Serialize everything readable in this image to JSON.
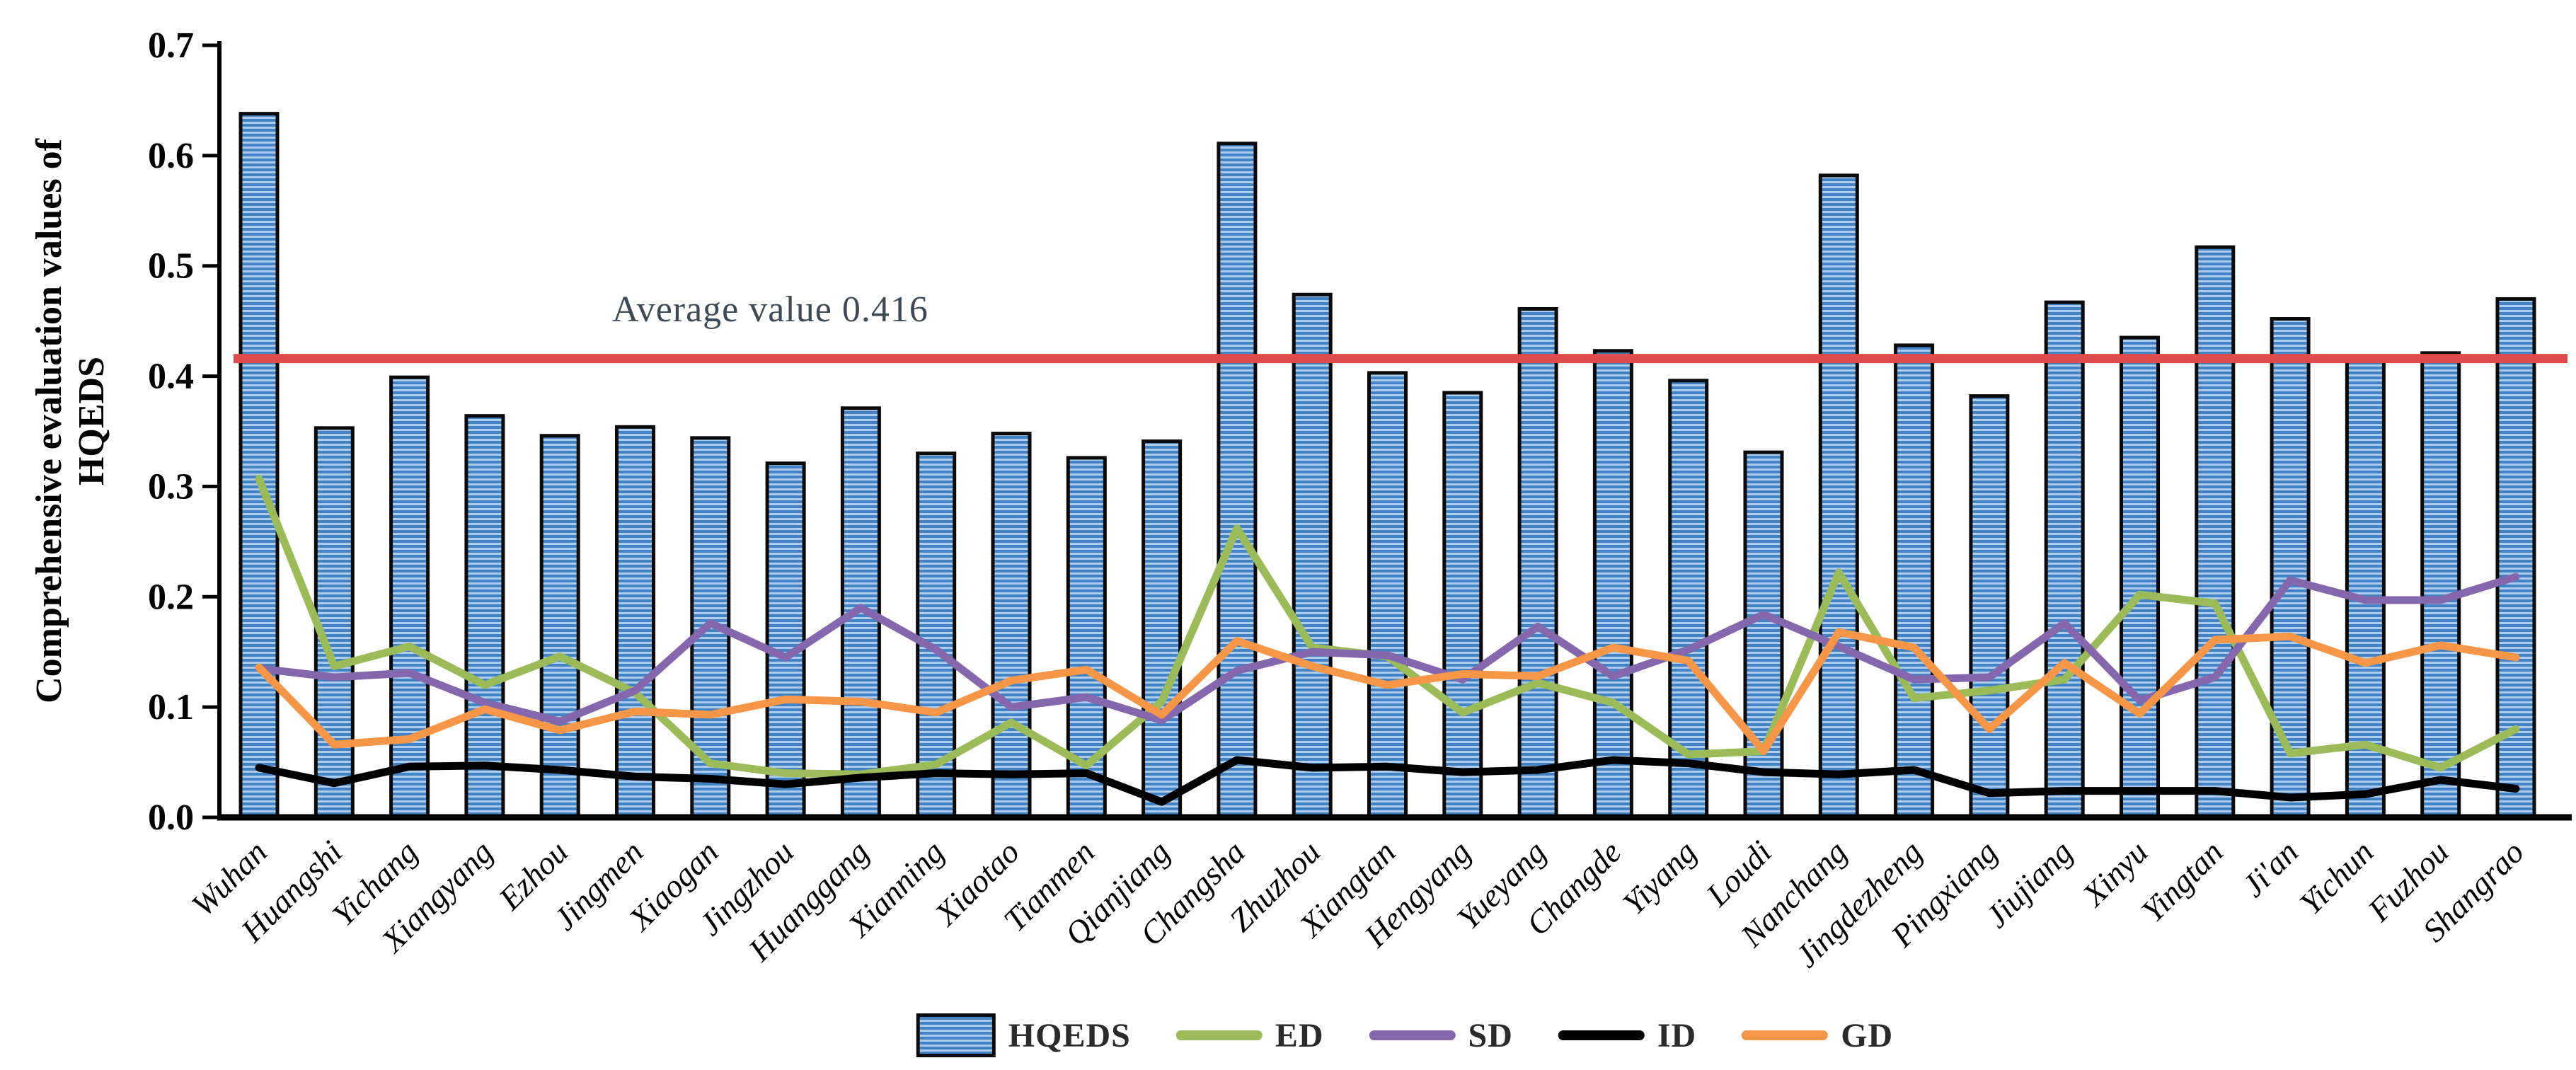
{
  "figure": {
    "ylabel_line1": "Comprehensive evaluation values of",
    "ylabel_line2": "HQEDS",
    "average_label": "Average value 0.416"
  },
  "chart_data": {
    "type": "bar+line composite",
    "title": "",
    "xlabel": "",
    "ylabel": "Comprehensive evaluation values of HQEDS",
    "ylim": [
      0.0,
      0.7
    ],
    "ytick_step": 0.1,
    "ytick_labels": [
      "0.0",
      "0.1",
      "0.2",
      "0.3",
      "0.4",
      "0.5",
      "0.6",
      "0.7"
    ],
    "grid": false,
    "legend_position": "bottom-center",
    "average_line": {
      "value": 0.416,
      "label": "Average value 0.416",
      "color": "#e14b4b"
    },
    "categories": [
      "Wuhan",
      "Huangshi",
      "Yichang",
      "Xiangyang",
      "Ezhou",
      "Jingmen",
      "Xiaogan",
      "Jingzhou",
      "Huanggang",
      "Xianning",
      "Xiaotao",
      "Tianmen",
      "Qianjiang",
      "Changsha",
      "Zhuzhou",
      "Xiangtan",
      "Hengyang",
      "Yueyang",
      "Changde",
      "Yiyang",
      "Loudi",
      "Nanchang",
      "Jingdezheng",
      "Pingxiang",
      "Jiujiang",
      "Xinyu",
      "Yingtan",
      "Ji'an",
      "Yichun",
      "Fuzhou",
      "Shangrao"
    ],
    "bar_series": {
      "name": "HQEDS",
      "color_dark": "#4183c4",
      "color_light": "#aecdec",
      "border_color": "#0a0a0a",
      "values": [
        0.638,
        0.353,
        0.399,
        0.364,
        0.346,
        0.354,
        0.344,
        0.321,
        0.371,
        0.33,
        0.348,
        0.326,
        0.341,
        0.611,
        0.474,
        0.403,
        0.385,
        0.461,
        0.423,
        0.396,
        0.331,
        0.582,
        0.428,
        0.382,
        0.467,
        0.435,
        0.517,
        0.452,
        0.418,
        0.421,
        0.47
      ]
    },
    "series": [
      {
        "name": "ED",
        "color": "#9bbb59",
        "values": [
          0.307,
          0.137,
          0.155,
          0.12,
          0.146,
          0.113,
          0.049,
          0.04,
          0.039,
          0.048,
          0.086,
          0.047,
          0.105,
          0.262,
          0.154,
          0.146,
          0.095,
          0.122,
          0.104,
          0.057,
          0.06,
          0.222,
          0.108,
          0.115,
          0.125,
          0.202,
          0.194,
          0.058,
          0.066,
          0.045,
          0.08
        ]
      },
      {
        "name": "SD",
        "color": "#8467ad",
        "values": [
          0.135,
          0.127,
          0.131,
          0.104,
          0.087,
          0.115,
          0.176,
          0.145,
          0.19,
          0.152,
          0.1,
          0.109,
          0.088,
          0.133,
          0.15,
          0.147,
          0.125,
          0.173,
          0.128,
          0.152,
          0.184,
          0.155,
          0.125,
          0.127,
          0.176,
          0.106,
          0.127,
          0.215,
          0.197,
          0.197,
          0.218
        ]
      },
      {
        "name": "ID",
        "color": "#000000",
        "values": [
          0.045,
          0.031,
          0.046,
          0.047,
          0.043,
          0.037,
          0.035,
          0.03,
          0.036,
          0.04,
          0.039,
          0.04,
          0.014,
          0.052,
          0.045,
          0.046,
          0.041,
          0.043,
          0.052,
          0.049,
          0.041,
          0.039,
          0.043,
          0.022,
          0.024,
          0.024,
          0.024,
          0.018,
          0.021,
          0.034,
          0.026
        ]
      },
      {
        "name": "GD",
        "color": "#f79646",
        "values": [
          0.136,
          0.066,
          0.071,
          0.098,
          0.079,
          0.096,
          0.093,
          0.107,
          0.105,
          0.095,
          0.124,
          0.134,
          0.093,
          0.16,
          0.137,
          0.12,
          0.13,
          0.128,
          0.154,
          0.142,
          0.06,
          0.168,
          0.154,
          0.08,
          0.14,
          0.094,
          0.161,
          0.164,
          0.14,
          0.156,
          0.145
        ]
      }
    ],
    "legend": [
      {
        "label": "HQEDS",
        "type": "bar"
      },
      {
        "label": "ED",
        "type": "line",
        "color": "#9bbb59"
      },
      {
        "label": "SD",
        "type": "line",
        "color": "#8467ad"
      },
      {
        "label": "ID",
        "type": "line",
        "color": "#000000"
      },
      {
        "label": "GD",
        "type": "line",
        "color": "#f79646"
      }
    ]
  }
}
